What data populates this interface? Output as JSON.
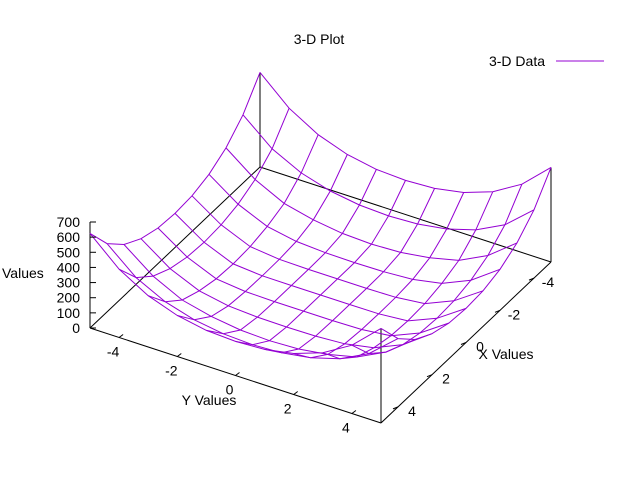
{
  "chart_data": {
    "type": "surface",
    "title": "3-D Plot",
    "xlabel": "X Values",
    "ylabel": "Y Values",
    "zlabel": "Values",
    "xlim": [
      -5,
      5
    ],
    "ylim": [
      -5,
      5
    ],
    "zlim": [
      0,
      700
    ],
    "x_ticks": [
      -4,
      -2,
      0,
      2,
      4
    ],
    "y_ticks": [
      -4,
      -2,
      0,
      2,
      4
    ],
    "z_ticks": [
      0,
      100,
      200,
      300,
      400,
      500,
      600,
      700
    ],
    "x_tick_labels": [
      "-4",
      "-2",
      "0",
      "2",
      "4"
    ],
    "y_tick_labels": [
      "-4",
      "-2",
      "0",
      "2",
      "4"
    ],
    "z_tick_labels": [
      "0",
      "100",
      "200",
      "300",
      "400",
      "500",
      "600",
      "700"
    ],
    "series": [
      {
        "name": "3-D Data",
        "x": [
          -5,
          -4,
          -3,
          -2,
          -1,
          0,
          1,
          2,
          3,
          4,
          5
        ],
        "y": [
          -5,
          -4,
          -3,
          -2,
          -1,
          0,
          1,
          2,
          3,
          4,
          5
        ],
        "z_rows": [
          [
            625,
            451,
            339,
            271,
            235,
            225,
            235,
            271,
            339,
            451,
            625
          ],
          [
            451,
            289,
            193,
            136,
            106,
            97,
            106,
            136,
            193,
            289,
            451
          ],
          [
            339,
            193,
            98,
            52,
            25,
            17,
            25,
            52,
            98,
            193,
            339
          ],
          [
            271,
            136,
            52,
            16,
            4,
            1,
            4,
            16,
            52,
            136,
            271
          ],
          [
            235,
            106,
            25,
            4,
            0,
            0,
            0,
            4,
            25,
            106,
            235
          ],
          [
            225,
            97,
            17,
            1,
            0,
            0,
            0,
            1,
            17,
            97,
            225
          ],
          [
            235,
            106,
            25,
            4,
            0,
            0,
            0,
            4,
            25,
            106,
            235
          ],
          [
            271,
            136,
            52,
            16,
            4,
            1,
            4,
            16,
            52,
            136,
            271
          ],
          [
            339,
            193,
            98,
            52,
            25,
            17,
            25,
            52,
            98,
            193,
            339
          ],
          [
            451,
            289,
            193,
            136,
            106,
            97,
            106,
            136,
            193,
            289,
            451
          ],
          [
            625,
            451,
            339,
            271,
            235,
            225,
            235,
            271,
            339,
            451,
            625
          ]
        ]
      }
    ],
    "legend": "top-right",
    "grid": false,
    "colors": {
      "series": "#9400d3",
      "axes": "#000000"
    }
  }
}
